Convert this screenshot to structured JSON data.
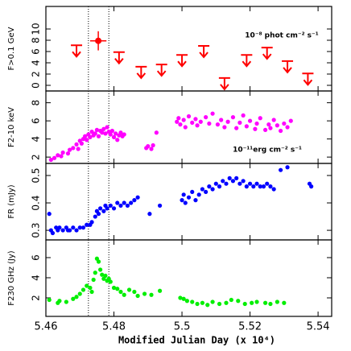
{
  "chart_data": [
    {
      "type": "scatter",
      "ylabel": "F>0.1 GeV",
      "annotation": "10⁻⁸ phot cm⁻² s⁻¹",
      "xlim": [
        5.46,
        5.544
      ],
      "xticks": [
        5.46,
        5.48,
        5.5,
        5.52,
        5.54
      ],
      "vlines": [
        5.4725,
        5.4785
      ],
      "ylim": [
        -1,
        14
      ],
      "yticks": [
        0,
        2,
        4,
        6,
        8,
        10
      ],
      "series": [
        {
          "marker": "upper-limit",
          "color": "#ff0000",
          "x": [
            5.469,
            5.4815,
            5.488,
            5.494,
            5.5,
            5.5064,
            5.5125,
            5.519,
            5.525,
            5.531,
            5.537
          ],
          "values": [
            7.1,
            5.9,
            3.3,
            3.7,
            5.4,
            7.0,
            1.3,
            5.4,
            6.7,
            4.3,
            2.1
          ]
        },
        {
          "marker": "detection",
          "color": "#ff0000",
          "x": [
            5.4754
          ],
          "values": [
            7.9
          ],
          "x_errors": [
            0.0024
          ],
          "errors": [
            1.7
          ]
        }
      ]
    },
    {
      "type": "scatter",
      "ylabel": "F2-10 keV",
      "annotation": "10⁻¹¹erg cm⁻² s⁻¹",
      "xlim": [
        5.46,
        5.544
      ],
      "xticks": [
        5.46,
        5.48,
        5.5,
        5.52,
        5.54
      ],
      "vlines": [
        5.4725,
        5.4785
      ],
      "ylim": [
        1.3,
        9.3
      ],
      "yticks": [
        2,
        4,
        6,
        8
      ],
      "series": [
        {
          "marker": "dot",
          "color": "#ff00ff",
          "x": [
            5.4615,
            5.4625,
            5.4635,
            5.4645,
            5.465,
            5.4665,
            5.467,
            5.468,
            5.469,
            5.4695,
            5.47,
            5.4705,
            5.471,
            5.4715,
            5.472,
            5.4725,
            5.473,
            5.4735,
            5.474,
            5.4745,
            5.475,
            5.4755,
            5.476,
            5.4765,
            5.477,
            5.4775,
            5.478,
            5.4785,
            5.479,
            5.4795,
            5.48,
            5.4805,
            5.481,
            5.4815,
            5.482,
            5.4825,
            5.483,
            5.4895,
            5.49,
            5.491,
            5.4915,
            5.4925,
            5.4985,
            5.499,
            5.4995,
            5.5005,
            5.501,
            5.502,
            5.503,
            5.504,
            5.5045,
            5.5055,
            5.507,
            5.508,
            5.509,
            5.5105,
            5.5115,
            5.5125,
            5.5135,
            5.515,
            5.516,
            5.517,
            5.518,
            5.519,
            5.52,
            5.5215,
            5.522,
            5.523,
            5.5245,
            5.5255,
            5.526,
            5.527,
            5.528,
            5.529,
            5.53,
            5.531,
            5.532
          ],
          "values": [
            1.7,
            1.9,
            2.2,
            2.1,
            2.5,
            2.4,
            2.8,
            3.0,
            3.4,
            2.9,
            3.8,
            3.5,
            4.0,
            4.3,
            3.9,
            4.5,
            4.2,
            4.8,
            4.4,
            4.6,
            5.0,
            4.3,
            4.9,
            4.7,
            5.1,
            4.6,
            5.3,
            4.8,
            4.5,
            4.9,
            4.2,
            4.6,
            3.9,
            4.4,
            4.7,
            4.3,
            4.5,
            3.0,
            3.2,
            2.9,
            3.3,
            4.7,
            5.9,
            6.3,
            5.6,
            6.1,
            5.3,
            6.5,
            5.8,
            6.2,
            5.5,
            5.9,
            6.4,
            5.7,
            6.8,
            5.6,
            6.1,
            5.3,
            5.9,
            6.4,
            5.2,
            5.8,
            6.6,
            5.4,
            6.0,
            5.1,
            5.7,
            6.3,
            5.0,
            5.6,
            5.2,
            6.1,
            5.5,
            4.9,
            5.7,
            5.3,
            6.0
          ]
        }
      ]
    },
    {
      "type": "scatter",
      "ylabel": "FR (mJy)",
      "xlim": [
        5.46,
        5.544
      ],
      "xticks": [
        5.46,
        5.48,
        5.5,
        5.52,
        5.54
      ],
      "vlines": [
        5.4725,
        5.4785
      ],
      "ylim": [
        0.265,
        0.544
      ],
      "yticks": [
        0.3,
        0.4,
        0.5
      ],
      "series": [
        {
          "marker": "dot",
          "color": "#0000ff",
          "x": [
            5.461,
            5.4615,
            5.462,
            5.463,
            5.4635,
            5.464,
            5.465,
            5.466,
            5.4665,
            5.467,
            5.468,
            5.469,
            5.47,
            5.471,
            5.472,
            5.473,
            5.4735,
            5.4745,
            5.475,
            5.4755,
            5.476,
            5.477,
            5.4775,
            5.478,
            5.479,
            5.48,
            5.481,
            5.482,
            5.483,
            5.484,
            5.485,
            5.486,
            5.487,
            5.4905,
            5.4935,
            5.5,
            5.5005,
            5.501,
            5.502,
            5.503,
            5.504,
            5.505,
            5.506,
            5.507,
            5.508,
            5.509,
            5.51,
            5.511,
            5.512,
            5.513,
            5.514,
            5.515,
            5.516,
            5.517,
            5.518,
            5.519,
            5.52,
            5.521,
            5.522,
            5.523,
            5.524,
            5.525,
            5.526,
            5.527,
            5.529,
            5.531,
            5.5375,
            5.538
          ],
          "values": [
            0.36,
            0.3,
            0.29,
            0.31,
            0.3,
            0.31,
            0.3,
            0.31,
            0.3,
            0.3,
            0.31,
            0.3,
            0.31,
            0.31,
            0.32,
            0.32,
            0.33,
            0.35,
            0.37,
            0.36,
            0.38,
            0.37,
            0.39,
            0.38,
            0.39,
            0.38,
            0.4,
            0.39,
            0.4,
            0.39,
            0.4,
            0.41,
            0.42,
            0.36,
            0.39,
            0.41,
            0.43,
            0.4,
            0.42,
            0.44,
            0.41,
            0.43,
            0.45,
            0.44,
            0.46,
            0.45,
            0.47,
            0.46,
            0.48,
            0.47,
            0.49,
            0.48,
            0.49,
            0.47,
            0.48,
            0.46,
            0.47,
            0.46,
            0.47,
            0.46,
            0.46,
            0.47,
            0.46,
            0.45,
            0.52,
            0.53,
            0.47,
            0.46
          ]
        }
      ]
    },
    {
      "type": "scatter",
      "ylabel": "F230 GHz (Jy)",
      "xlabel": "Modified Julian Day (x 10⁴)",
      "xlim": [
        5.46,
        5.544
      ],
      "xticks": [
        5.46,
        5.48,
        5.5,
        5.52,
        5.54
      ],
      "vlines": [
        5.4725,
        5.4785
      ],
      "ylim": [
        0.16,
        7.76
      ],
      "yticks": [
        2,
        4,
        6
      ],
      "series": [
        {
          "marker": "dot",
          "color": "#00ee00",
          "x": [
            5.461,
            5.4635,
            5.464,
            5.466,
            5.468,
            5.469,
            5.47,
            5.471,
            5.472,
            5.473,
            5.4735,
            5.474,
            5.4745,
            5.475,
            5.4755,
            5.476,
            5.4765,
            5.477,
            5.4775,
            5.478,
            5.4785,
            5.479,
            5.48,
            5.481,
            5.482,
            5.483,
            5.4845,
            5.486,
            5.487,
            5.489,
            5.491,
            5.4935,
            5.4995,
            5.5005,
            5.5015,
            5.503,
            5.5045,
            5.506,
            5.5075,
            5.509,
            5.511,
            5.513,
            5.5145,
            5.5165,
            5.5185,
            5.5205,
            5.522,
            5.5245,
            5.526,
            5.528,
            5.53
          ],
          "values": [
            1.8,
            1.5,
            1.7,
            1.6,
            1.9,
            2.1,
            2.4,
            2.8,
            3.2,
            3.0,
            2.6,
            3.8,
            4.5,
            5.9,
            5.6,
            4.8,
            4.3,
            3.9,
            4.2,
            3.7,
            3.9,
            3.6,
            3.0,
            2.9,
            2.6,
            2.3,
            2.8,
            2.6,
            2.2,
            2.4,
            2.3,
            2.7,
            2.0,
            1.9,
            1.7,
            1.6,
            1.4,
            1.5,
            1.3,
            1.6,
            1.4,
            1.5,
            1.8,
            1.7,
            1.4,
            1.5,
            1.6,
            1.5,
            1.4,
            1.6,
            1.5
          ]
        }
      ]
    }
  ]
}
